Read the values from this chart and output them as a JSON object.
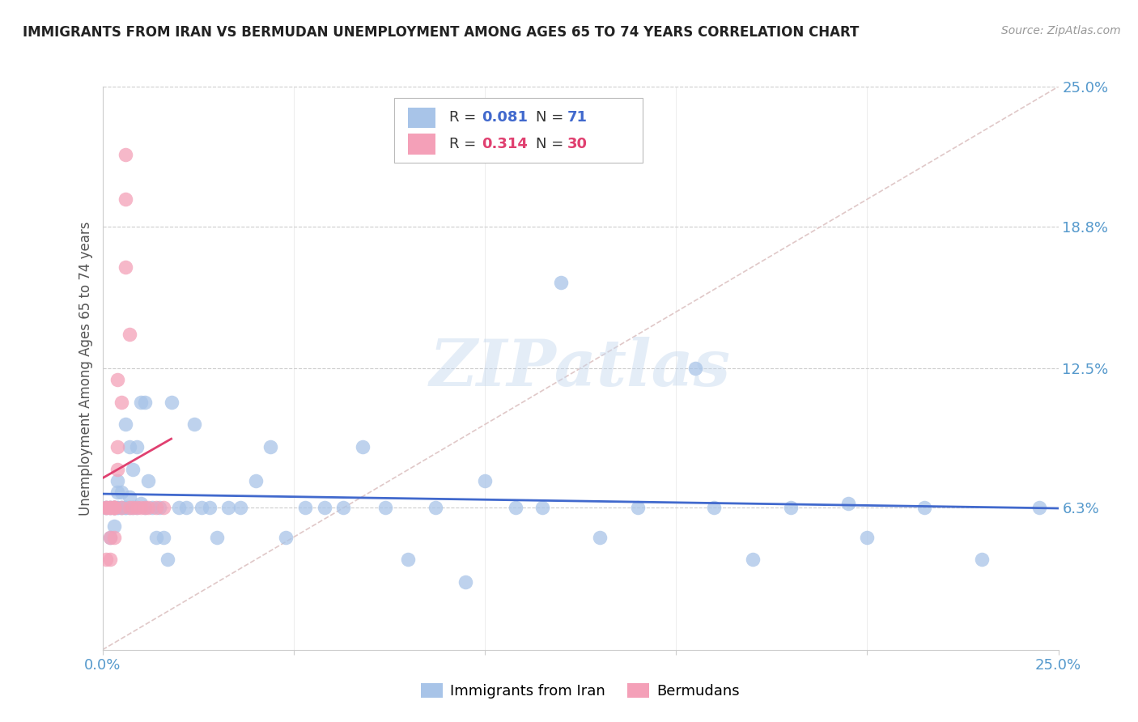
{
  "title": "IMMIGRANTS FROM IRAN VS BERMUDAN UNEMPLOYMENT AMONG AGES 65 TO 74 YEARS CORRELATION CHART",
  "source": "Source: ZipAtlas.com",
  "ylabel": "Unemployment Among Ages 65 to 74 years",
  "watermark": "ZIPatlas",
  "xlim": [
    0.0,
    0.25
  ],
  "ylim": [
    0.0,
    0.25
  ],
  "yticks_right": [
    0.063,
    0.125,
    0.188,
    0.25
  ],
  "ytick_labels_right": [
    "6.3%",
    "12.5%",
    "18.8%",
    "25.0%"
  ],
  "legend_r1": "0.081",
  "legend_n1": "71",
  "legend_r2": "0.314",
  "legend_n2": "30",
  "color_blue": "#A8C4E8",
  "color_pink": "#F4A0B8",
  "color_blue_line": "#4169CD",
  "color_pink_line": "#E04070",
  "color_diag_line": "#E0C8C8",
  "iran_x": [
    0.001,
    0.001,
    0.002,
    0.002,
    0.002,
    0.003,
    0.003,
    0.003,
    0.003,
    0.004,
    0.004,
    0.004,
    0.004,
    0.005,
    0.005,
    0.005,
    0.006,
    0.006,
    0.006,
    0.007,
    0.007,
    0.007,
    0.008,
    0.008,
    0.009,
    0.009,
    0.01,
    0.01,
    0.011,
    0.011,
    0.012,
    0.013,
    0.014,
    0.015,
    0.016,
    0.017,
    0.018,
    0.02,
    0.022,
    0.024,
    0.026,
    0.028,
    0.03,
    0.033,
    0.036,
    0.04,
    0.044,
    0.048,
    0.053,
    0.058,
    0.063,
    0.068,
    0.074,
    0.08,
    0.087,
    0.095,
    0.1,
    0.108,
    0.115,
    0.12,
    0.13,
    0.14,
    0.155,
    0.16,
    0.17,
    0.18,
    0.195,
    0.2,
    0.215,
    0.23,
    0.245
  ],
  "iran_y": [
    0.063,
    0.063,
    0.063,
    0.05,
    0.063,
    0.063,
    0.063,
    0.055,
    0.063,
    0.07,
    0.063,
    0.075,
    0.063,
    0.063,
    0.063,
    0.07,
    0.1,
    0.063,
    0.063,
    0.068,
    0.063,
    0.09,
    0.08,
    0.063,
    0.063,
    0.09,
    0.065,
    0.11,
    0.11,
    0.063,
    0.075,
    0.063,
    0.05,
    0.063,
    0.05,
    0.04,
    0.11,
    0.063,
    0.063,
    0.1,
    0.063,
    0.063,
    0.05,
    0.063,
    0.063,
    0.075,
    0.09,
    0.05,
    0.063,
    0.063,
    0.063,
    0.09,
    0.063,
    0.04,
    0.063,
    0.03,
    0.075,
    0.063,
    0.063,
    0.163,
    0.05,
    0.063,
    0.125,
    0.063,
    0.04,
    0.063,
    0.065,
    0.05,
    0.063,
    0.04,
    0.063
  ],
  "bermuda_x": [
    0.001,
    0.001,
    0.001,
    0.002,
    0.002,
    0.002,
    0.002,
    0.003,
    0.003,
    0.003,
    0.003,
    0.003,
    0.003,
    0.004,
    0.004,
    0.004,
    0.005,
    0.005,
    0.006,
    0.006,
    0.006,
    0.007,
    0.007,
    0.008,
    0.009,
    0.01,
    0.011,
    0.012,
    0.014,
    0.016
  ],
  "bermuda_y": [
    0.063,
    0.063,
    0.04,
    0.063,
    0.063,
    0.05,
    0.04,
    0.063,
    0.063,
    0.063,
    0.05,
    0.063,
    0.063,
    0.12,
    0.09,
    0.08,
    0.063,
    0.11,
    0.2,
    0.22,
    0.17,
    0.063,
    0.14,
    0.063,
    0.063,
    0.063,
    0.063,
    0.063,
    0.063,
    0.063
  ]
}
